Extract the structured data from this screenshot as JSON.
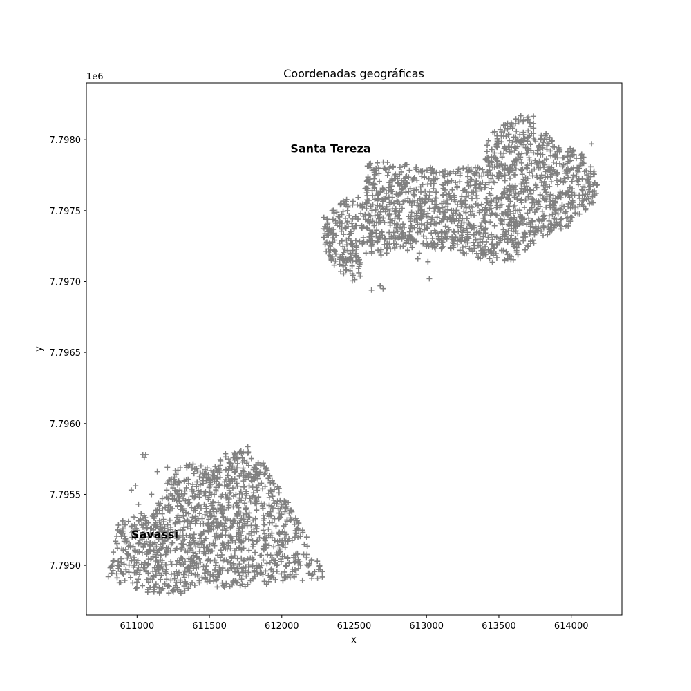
{
  "chart_data": {
    "type": "scatter",
    "title": "Coordenadas geográficas",
    "xlabel": "x",
    "ylabel": "y",
    "y_offset_label": "1e6",
    "xlim": [
      610650,
      614350
    ],
    "ylim": [
      7794650,
      7798400
    ],
    "xticks": [
      611000,
      611500,
      612000,
      612500,
      613000,
      613500,
      614000
    ],
    "xtick_labels": [
      "611000",
      "611500",
      "612000",
      "612500",
      "613000",
      "613500",
      "614000"
    ],
    "yticks": [
      7795000,
      7795500,
      7796000,
      7796500,
      7797000,
      7797500,
      7798000
    ],
    "ytick_labels": [
      "7.7950",
      "7.7955",
      "7.7960",
      "7.7965",
      "7.7970",
      "7.7975",
      "7.7980"
    ],
    "grid": false,
    "marker": "+",
    "marker_color": "#808080",
    "annotations": [
      {
        "text": "Santa Tereza",
        "x": 612060,
        "y": 7797910
      },
      {
        "text": "Savassi",
        "x": 610960,
        "y": 7795190
      }
    ],
    "regions": [
      {
        "name": "Santa Tereza",
        "outline": [
          [
            612280,
            7797450
          ],
          [
            612400,
            7797560
          ],
          [
            612560,
            7797620
          ],
          [
            612590,
            7797860
          ],
          [
            612900,
            7797820
          ],
          [
            613200,
            7797800
          ],
          [
            613400,
            7797820
          ],
          [
            613430,
            7798040
          ],
          [
            613560,
            7798140
          ],
          [
            613720,
            7798200
          ],
          [
            613780,
            7798100
          ],
          [
            613900,
            7797980
          ],
          [
            614080,
            7797900
          ],
          [
            614170,
            7797760
          ],
          [
            614190,
            7797700
          ],
          [
            614160,
            7797560
          ],
          [
            614000,
            7797400
          ],
          [
            613800,
            7797300
          ],
          [
            613600,
            7797150
          ],
          [
            613450,
            7797130
          ],
          [
            613250,
            7797200
          ],
          [
            613000,
            7797250
          ],
          [
            612850,
            7797250
          ],
          [
            612700,
            7797180
          ],
          [
            612570,
            7797200
          ],
          [
            612540,
            7797000
          ],
          [
            612440,
            7797010
          ],
          [
            612300,
            7797200
          ]
        ],
        "point_count": 1700
      },
      {
        "name": "Savassi",
        "outline": [
          [
            610800,
            7794920
          ],
          [
            610870,
            7795300
          ],
          [
            611000,
            7795390
          ],
          [
            611120,
            7795370
          ],
          [
            611160,
            7795510
          ],
          [
            611280,
            7795700
          ],
          [
            611350,
            7795730
          ],
          [
            611530,
            7795700
          ],
          [
            611600,
            7795790
          ],
          [
            611720,
            7795860
          ],
          [
            611800,
            7795820
          ],
          [
            611900,
            7795680
          ],
          [
            612050,
            7795440
          ],
          [
            612150,
            7795280
          ],
          [
            612260,
            7795000
          ],
          [
            612310,
            7794910
          ],
          [
            612000,
            7794880
          ],
          [
            611700,
            7794840
          ],
          [
            611500,
            7794850
          ],
          [
            611400,
            7794860
          ],
          [
            611300,
            7794800
          ],
          [
            611100,
            7794800
          ],
          [
            610850,
            7794880
          ]
        ],
        "point_count": 1300
      }
    ],
    "outliers": [
      [
        611040,
        7795780
      ],
      [
        611050,
        7795760
      ],
      [
        611060,
        7795780
      ],
      [
        610990,
        7795560
      ],
      [
        610960,
        7795530
      ],
      [
        611010,
        7795430
      ],
      [
        611100,
        7795500
      ],
      [
        611140,
        7795660
      ],
      [
        611210,
        7795690
      ],
      [
        611220,
        7795600
      ],
      [
        612900,
        7797240
      ],
      [
        612950,
        7797200
      ],
      [
        613000,
        7797250
      ],
      [
        613010,
        7797140
      ],
      [
        613060,
        7797230
      ],
      [
        613020,
        7797020
      ],
      [
        612940,
        7797160
      ],
      [
        614140,
        7797970
      ],
      [
        612700,
        7796950
      ],
      [
        612620,
        7796940
      ],
      [
        612680,
        7796970
      ],
      [
        612870,
        7797220
      ]
    ]
  }
}
